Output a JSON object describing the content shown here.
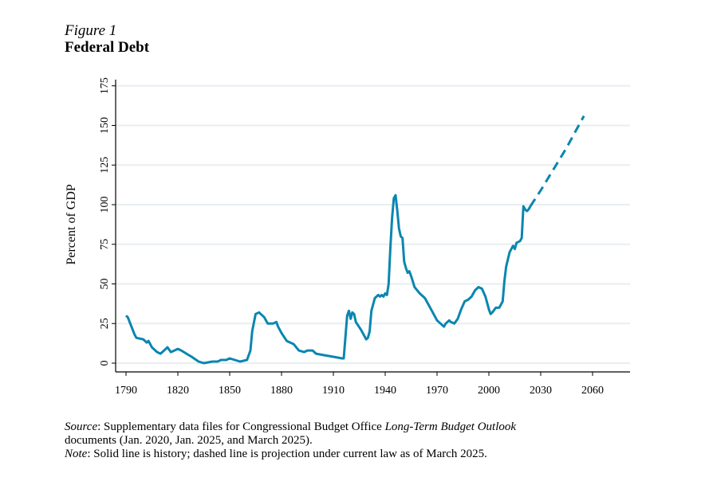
{
  "figure_label": "Figure 1",
  "chart_data": {
    "type": "line",
    "title": "Federal Debt",
    "xlabel": "",
    "ylabel": "Percent of GDP",
    "xlim": [
      1785,
      2080
    ],
    "ylim": [
      -5,
      178
    ],
    "xticks": [
      1790,
      1820,
      1850,
      1880,
      1910,
      1940,
      1970,
      2000,
      2030,
      2060
    ],
    "yticks": [
      0,
      25,
      50,
      75,
      100,
      125,
      150,
      175
    ],
    "grid": "horizontal",
    "color": "#0a86b0",
    "series": [
      {
        "name": "History",
        "style": "solid",
        "x": [
          1790,
          1791,
          1795,
          1796,
          1800,
          1802,
          1803,
          1805,
          1808,
          1810,
          1812,
          1814,
          1816,
          1818,
          1820,
          1822,
          1825,
          1828,
          1832,
          1835,
          1840,
          1843,
          1845,
          1848,
          1850,
          1853,
          1856,
          1860,
          1862,
          1863,
          1865,
          1867,
          1870,
          1872,
          1875,
          1877,
          1878,
          1880,
          1883,
          1887,
          1890,
          1893,
          1895,
          1898,
          1900,
          1905,
          1910,
          1915,
          1916,
          1918,
          1919,
          1920,
          1921,
          1922,
          1923,
          1926,
          1929,
          1930,
          1931,
          1932,
          1934,
          1936,
          1937,
          1938,
          1939,
          1940,
          1941,
          1942,
          1943,
          1944,
          1945,
          1946,
          1947,
          1948,
          1949,
          1950,
          1951,
          1952,
          1953,
          1954,
          1955,
          1957,
          1960,
          1963,
          1965,
          1968,
          1970,
          1974,
          1975,
          1977,
          1978,
          1980,
          1982,
          1984,
          1986,
          1988,
          1990,
          1992,
          1994,
          1996,
          1998,
          2000,
          2001,
          2002,
          2004,
          2006,
          2008,
          2009,
          2010,
          2012,
          2014,
          2015,
          2016,
          2018,
          2019,
          2020,
          2021,
          2022,
          2023,
          2024
        ],
        "y": [
          30,
          29,
          18,
          16,
          15,
          13,
          14,
          10,
          7,
          6,
          8,
          10,
          7,
          8,
          9,
          8,
          6,
          4,
          1,
          0,
          1,
          1,
          2,
          2,
          3,
          2,
          1,
          2,
          8,
          20,
          31,
          32,
          29,
          25,
          25,
          26,
          23,
          19,
          14,
          12,
          8,
          7,
          8,
          8,
          6,
          5,
          4,
          3,
          3,
          30,
          33,
          28,
          32,
          31,
          26,
          21,
          15,
          16,
          20,
          33,
          41,
          43,
          42,
          43,
          42,
          44,
          43,
          50,
          73,
          92,
          104,
          106,
          96,
          85,
          80,
          79,
          64,
          60,
          57,
          58,
          55,
          48,
          44,
          41,
          37,
          31,
          27,
          23,
          25,
          27,
          26,
          25,
          28,
          34,
          39,
          40,
          42,
          46,
          48,
          47,
          42,
          34,
          31,
          32,
          35,
          35,
          39,
          52,
          61,
          70,
          74,
          72,
          76,
          77,
          79,
          99,
          97,
          96,
          97,
          99
        ]
      },
      {
        "name": "Projection",
        "style": "dashed",
        "x": [
          2024,
          2030,
          2035,
          2040,
          2045,
          2050,
          2055
        ],
        "y": [
          99,
          109,
          118,
          127,
          136,
          146,
          156
        ]
      }
    ]
  },
  "notes": {
    "source_label": "Source",
    "source_text_1": ": Supplementary data files for Congressional Budget Office ",
    "source_italic": "Long-Term Budget Outlook",
    "source_text_2": "documents (Jan. 2020, Jan. 2025, and March 2025).",
    "note_label": "Note",
    "note_text": ": Solid line is history; dashed line is projection under current law as of March 2025."
  }
}
